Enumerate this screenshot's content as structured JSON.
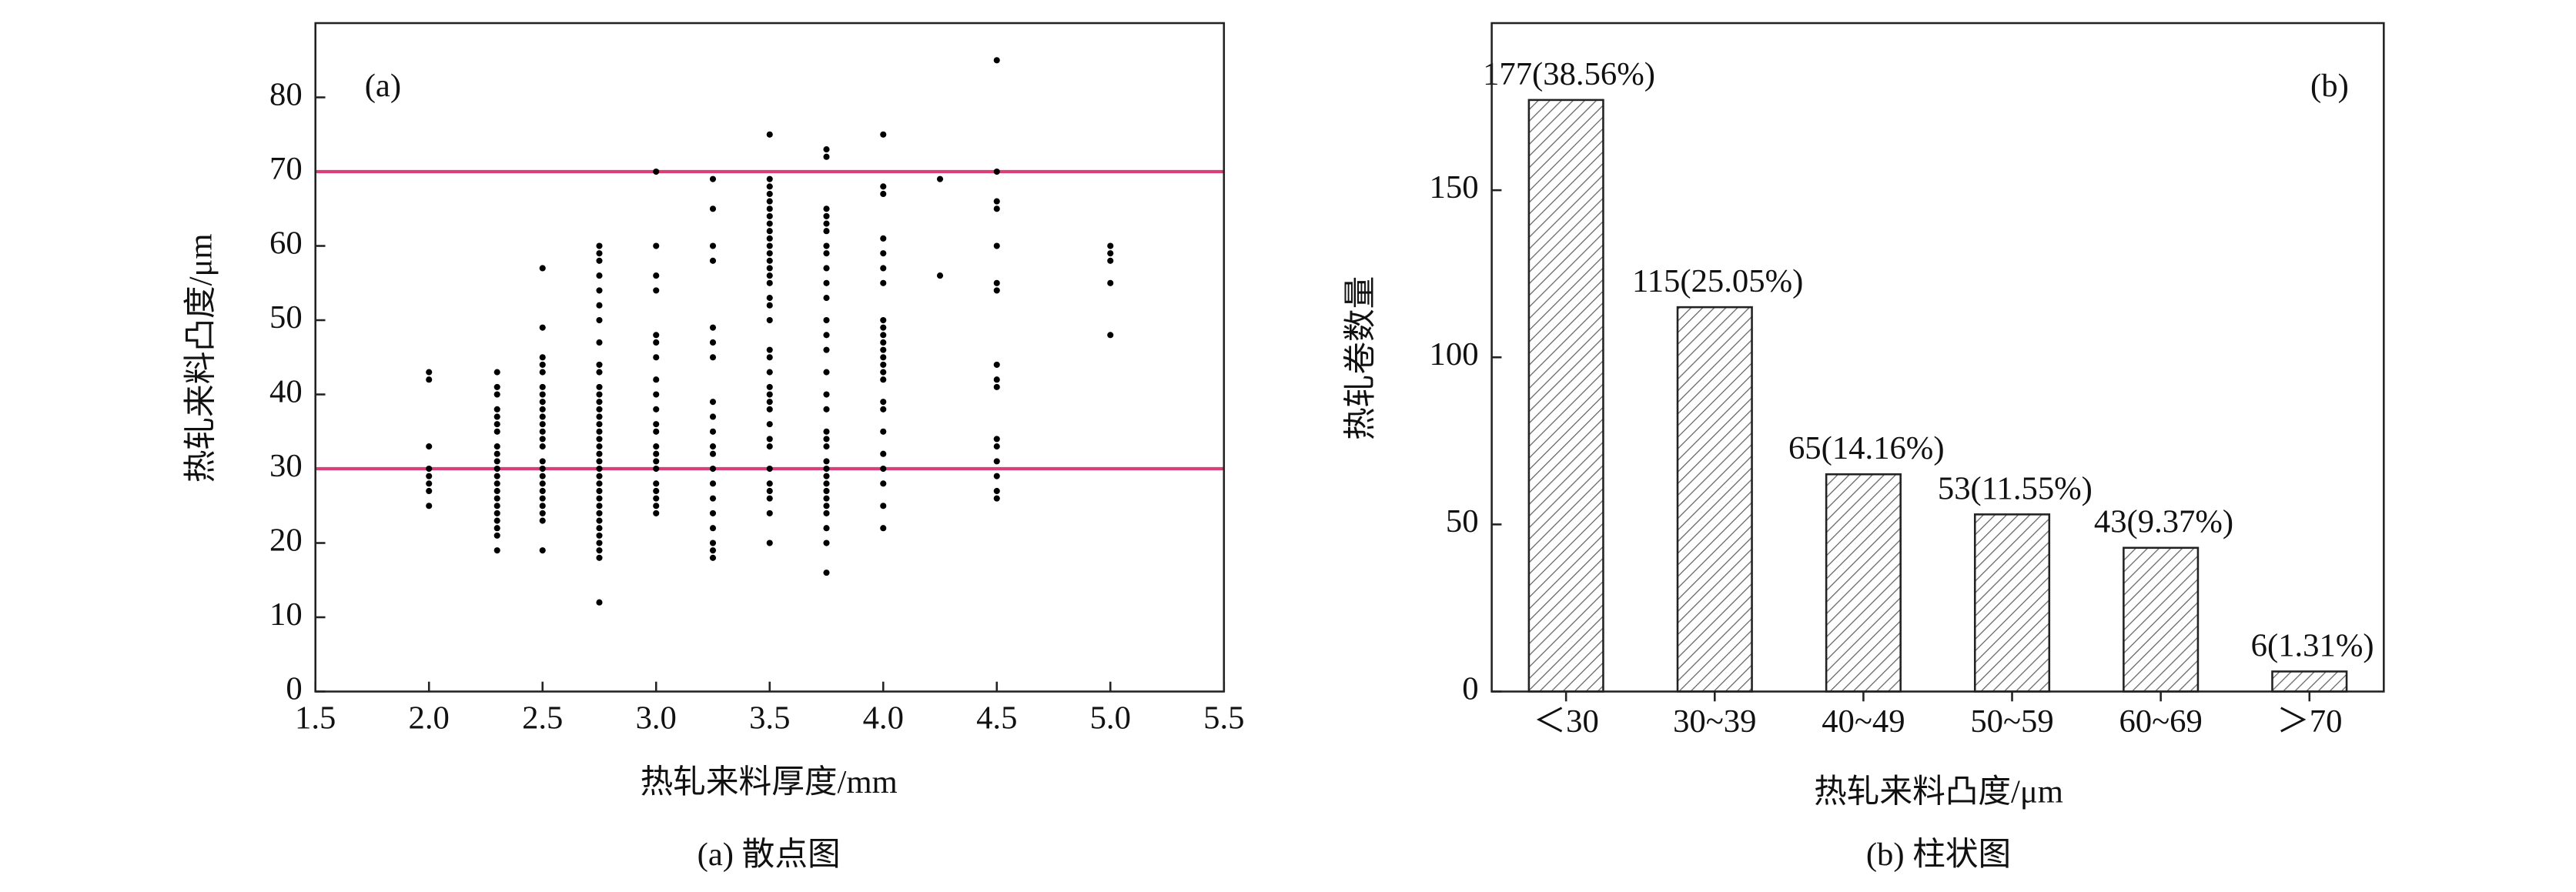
{
  "chart_data": [
    {
      "type": "scatter",
      "annotation": "(a)",
      "caption": "(a) 散点图",
      "x_label": "热轧来料厚度/mm",
      "y_label": "热轧来料凸度/μm",
      "xlim": [
        1.5,
        5.5
      ],
      "ylim": [
        0,
        90
      ],
      "xticks": [
        1.5,
        {
          "value": 2,
          "label": "2.0"
        },
        2.5,
        {
          "value": 3,
          "label": "3.0"
        },
        3.5,
        {
          "value": 4,
          "label": "4.0"
        },
        4.5,
        {
          "value": 5,
          "label": "5.0"
        },
        5.5
      ],
      "yticks": [
        0,
        10,
        20,
        30,
        40,
        50,
        60,
        70,
        80
      ],
      "color": "#000000",
      "hlines": [
        {
          "value": 30,
          "color": "#d9407a"
        },
        {
          "value": 70,
          "color": "#d9407a"
        }
      ],
      "points": [
        [
          2,
          25
        ],
        [
          2,
          27
        ],
        [
          2,
          28
        ],
        [
          2,
          29
        ],
        [
          2,
          30
        ],
        [
          2,
          33
        ],
        [
          2,
          42
        ],
        [
          2,
          43
        ],
        [
          2.3,
          19
        ],
        [
          2.3,
          21
        ],
        [
          2.3,
          22
        ],
        [
          2.3,
          23
        ],
        [
          2.3,
          24
        ],
        [
          2.3,
          25
        ],
        [
          2.3,
          26
        ],
        [
          2.3,
          27
        ],
        [
          2.3,
          28
        ],
        [
          2.3,
          29
        ],
        [
          2.3,
          30
        ],
        [
          2.3,
          31
        ],
        [
          2.3,
          32
        ],
        [
          2.3,
          33
        ],
        [
          2.3,
          35
        ],
        [
          2.3,
          36
        ],
        [
          2.3,
          37
        ],
        [
          2.3,
          38
        ],
        [
          2.3,
          40
        ],
        [
          2.3,
          41
        ],
        [
          2.3,
          43
        ],
        [
          2.5,
          19
        ],
        [
          2.5,
          23
        ],
        [
          2.5,
          24
        ],
        [
          2.5,
          25
        ],
        [
          2.5,
          26
        ],
        [
          2.5,
          27
        ],
        [
          2.5,
          28
        ],
        [
          2.5,
          29
        ],
        [
          2.5,
          30
        ],
        [
          2.5,
          31
        ],
        [
          2.5,
          33
        ],
        [
          2.5,
          34
        ],
        [
          2.5,
          35
        ],
        [
          2.5,
          36
        ],
        [
          2.5,
          37
        ],
        [
          2.5,
          38
        ],
        [
          2.5,
          39
        ],
        [
          2.5,
          40
        ],
        [
          2.5,
          41
        ],
        [
          2.5,
          43
        ],
        [
          2.5,
          44
        ],
        [
          2.5,
          45
        ],
        [
          2.5,
          49
        ],
        [
          2.5,
          57
        ],
        [
          2.75,
          12
        ],
        [
          2.75,
          18
        ],
        [
          2.75,
          19
        ],
        [
          2.75,
          20
        ],
        [
          2.75,
          21
        ],
        [
          2.75,
          22
        ],
        [
          2.75,
          23
        ],
        [
          2.75,
          24
        ],
        [
          2.75,
          25
        ],
        [
          2.75,
          26
        ],
        [
          2.75,
          27
        ],
        [
          2.75,
          28
        ],
        [
          2.75,
          29
        ],
        [
          2.75,
          30
        ],
        [
          2.75,
          31
        ],
        [
          2.75,
          32
        ],
        [
          2.75,
          33
        ],
        [
          2.75,
          34
        ],
        [
          2.75,
          35
        ],
        [
          2.75,
          36
        ],
        [
          2.75,
          37
        ],
        [
          2.75,
          38
        ],
        [
          2.75,
          39
        ],
        [
          2.75,
          40
        ],
        [
          2.75,
          41
        ],
        [
          2.75,
          43
        ],
        [
          2.75,
          44
        ],
        [
          2.75,
          47
        ],
        [
          2.75,
          50
        ],
        [
          2.75,
          52
        ],
        [
          2.75,
          54
        ],
        [
          2.75,
          56
        ],
        [
          2.75,
          58
        ],
        [
          2.75,
          59
        ],
        [
          2.75,
          60
        ],
        [
          3,
          24
        ],
        [
          3,
          25
        ],
        [
          3,
          26
        ],
        [
          3,
          27
        ],
        [
          3,
          28
        ],
        [
          3,
          30
        ],
        [
          3,
          31
        ],
        [
          3,
          32
        ],
        [
          3,
          33
        ],
        [
          3,
          35
        ],
        [
          3,
          36
        ],
        [
          3,
          38
        ],
        [
          3,
          40
        ],
        [
          3,
          42
        ],
        [
          3,
          45
        ],
        [
          3,
          47
        ],
        [
          3,
          48
        ],
        [
          3,
          54
        ],
        [
          3,
          56
        ],
        [
          3,
          60
        ],
        [
          3,
          70
        ],
        [
          3.25,
          18
        ],
        [
          3.25,
          19
        ],
        [
          3.25,
          20
        ],
        [
          3.25,
          22
        ],
        [
          3.25,
          24
        ],
        [
          3.25,
          26
        ],
        [
          3.25,
          28
        ],
        [
          3.25,
          30
        ],
        [
          3.25,
          32
        ],
        [
          3.25,
          33
        ],
        [
          3.25,
          35
        ],
        [
          3.25,
          37
        ],
        [
          3.25,
          39
        ],
        [
          3.25,
          45
        ],
        [
          3.25,
          47
        ],
        [
          3.25,
          49
        ],
        [
          3.25,
          58
        ],
        [
          3.25,
          60
        ],
        [
          3.25,
          65
        ],
        [
          3.25,
          69
        ],
        [
          3.5,
          20
        ],
        [
          3.5,
          24
        ],
        [
          3.5,
          26
        ],
        [
          3.5,
          27
        ],
        [
          3.5,
          28
        ],
        [
          3.5,
          30
        ],
        [
          3.5,
          33
        ],
        [
          3.5,
          34
        ],
        [
          3.5,
          36
        ],
        [
          3.5,
          38
        ],
        [
          3.5,
          39
        ],
        [
          3.5,
          40
        ],
        [
          3.5,
          41
        ],
        [
          3.5,
          43
        ],
        [
          3.5,
          45
        ],
        [
          3.5,
          46
        ],
        [
          3.5,
          50
        ],
        [
          3.5,
          52
        ],
        [
          3.5,
          53
        ],
        [
          3.5,
          55
        ],
        [
          3.5,
          56
        ],
        [
          3.5,
          57
        ],
        [
          3.5,
          58
        ],
        [
          3.5,
          59
        ],
        [
          3.5,
          60
        ],
        [
          3.5,
          61
        ],
        [
          3.5,
          62
        ],
        [
          3.5,
          63
        ],
        [
          3.5,
          64
        ],
        [
          3.5,
          65
        ],
        [
          3.5,
          66
        ],
        [
          3.5,
          67
        ],
        [
          3.5,
          68
        ],
        [
          3.5,
          69
        ],
        [
          3.5,
          75
        ],
        [
          3.75,
          16
        ],
        [
          3.75,
          20
        ],
        [
          3.75,
          22
        ],
        [
          3.75,
          24
        ],
        [
          3.75,
          25
        ],
        [
          3.75,
          26
        ],
        [
          3.75,
          27
        ],
        [
          3.75,
          28
        ],
        [
          3.75,
          29
        ],
        [
          3.75,
          30
        ],
        [
          3.75,
          31
        ],
        [
          3.75,
          33
        ],
        [
          3.75,
          34
        ],
        [
          3.75,
          35
        ],
        [
          3.75,
          38
        ],
        [
          3.75,
          40
        ],
        [
          3.75,
          43
        ],
        [
          3.75,
          46
        ],
        [
          3.75,
          48
        ],
        [
          3.75,
          50
        ],
        [
          3.75,
          53
        ],
        [
          3.75,
          55
        ],
        [
          3.75,
          57
        ],
        [
          3.75,
          59
        ],
        [
          3.75,
          60
        ],
        [
          3.75,
          62
        ],
        [
          3.75,
          63
        ],
        [
          3.75,
          64
        ],
        [
          3.75,
          65
        ],
        [
          3.75,
          72
        ],
        [
          3.75,
          73
        ],
        [
          4,
          22
        ],
        [
          4,
          25
        ],
        [
          4,
          28
        ],
        [
          4,
          30
        ],
        [
          4,
          32
        ],
        [
          4,
          35
        ],
        [
          4,
          38
        ],
        [
          4,
          39
        ],
        [
          4,
          42
        ],
        [
          4,
          43
        ],
        [
          4,
          44
        ],
        [
          4,
          45
        ],
        [
          4,
          46
        ],
        [
          4,
          47
        ],
        [
          4,
          48
        ],
        [
          4,
          49
        ],
        [
          4,
          50
        ],
        [
          4,
          55
        ],
        [
          4,
          57
        ],
        [
          4,
          59
        ],
        [
          4,
          61
        ],
        [
          4,
          67
        ],
        [
          4,
          68
        ],
        [
          4,
          75
        ],
        [
          4.25,
          56
        ],
        [
          4.25,
          69
        ],
        [
          4.5,
          26
        ],
        [
          4.5,
          27
        ],
        [
          4.5,
          29
        ],
        [
          4.5,
          31
        ],
        [
          4.5,
          33
        ],
        [
          4.5,
          34
        ],
        [
          4.5,
          41
        ],
        [
          4.5,
          42
        ],
        [
          4.5,
          44
        ],
        [
          4.5,
          54
        ],
        [
          4.5,
          55
        ],
        [
          4.5,
          60
        ],
        [
          4.5,
          65
        ],
        [
          4.5,
          66
        ],
        [
          4.5,
          70
        ],
        [
          4.5,
          85
        ],
        [
          5,
          48
        ],
        [
          5,
          55
        ],
        [
          5,
          58
        ],
        [
          5,
          59
        ],
        [
          5,
          60
        ]
      ]
    },
    {
      "type": "bar",
      "annotation": "(b)",
      "caption": "(b) 柱状图",
      "x_label": "热轧来料凸度/μm",
      "y_label": "热轧卷数量",
      "categories": [
        "＜30",
        "30~39",
        "40~49",
        "50~59",
        "60~69",
        "＞70"
      ],
      "values": [
        177,
        115,
        65,
        53,
        43,
        6
      ],
      "value_labels": [
        "177(38.56%)",
        "115(25.05%)",
        "65(14.16%)",
        "53(11.55%)",
        "43(9.37%)",
        "6(1.31%)"
      ],
      "ylim": [
        0,
        200
      ],
      "yticks": [
        0,
        50,
        100,
        150
      ],
      "color": "#666666",
      "hatch": true
    }
  ]
}
